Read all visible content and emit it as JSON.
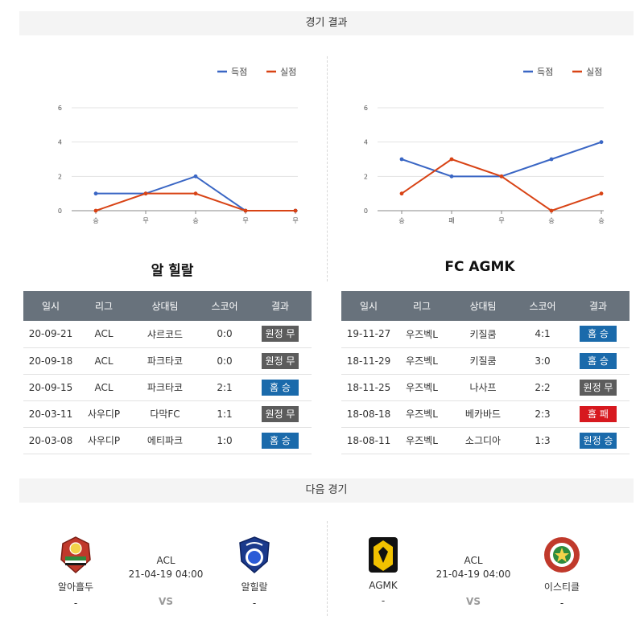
{
  "sections": {
    "results_title": "경기 결과",
    "next_title": "다음 경기"
  },
  "colors": {
    "scored": "#3a66c4",
    "conceded": "#d84315",
    "win": "#1a6aab",
    "draw": "#5c5c5c",
    "lose": "#d7191f",
    "header": "#68727c"
  },
  "chart_data": [
    {
      "type": "line",
      "categories": [
        "승",
        "무",
        "승",
        "무",
        "무"
      ],
      "series": [
        {
          "name": "득점",
          "values": [
            1,
            1,
            2,
            0,
            0
          ]
        },
        {
          "name": "실점",
          "values": [
            0,
            1,
            1,
            0,
            0
          ]
        }
      ],
      "yticks": [
        0,
        2,
        4,
        6
      ],
      "ylim": [
        0,
        6
      ],
      "grid": true,
      "legend": "top-right"
    },
    {
      "type": "line",
      "categories": [
        "승",
        "패",
        "무",
        "승",
        "승"
      ],
      "series": [
        {
          "name": "득점",
          "values": [
            3,
            2,
            2,
            3,
            4
          ]
        },
        {
          "name": "실점",
          "values": [
            1,
            3,
            2,
            0,
            1
          ]
        }
      ],
      "yticks": [
        0,
        2,
        4,
        6
      ],
      "ylim": [
        0,
        6
      ],
      "grid": true,
      "legend": "top-right"
    }
  ],
  "teams": {
    "left": {
      "name": "알 힐랄",
      "headers": [
        "일시",
        "리그",
        "상대팀",
        "스코어",
        "결과"
      ],
      "rows": [
        {
          "date": "20-09-21",
          "league": "ACL",
          "opponent": "샤르코드",
          "score": "0:0",
          "result": "원정 무",
          "type": "draw"
        },
        {
          "date": "20-09-18",
          "league": "ACL",
          "opponent": "파크타코",
          "score": "0:0",
          "result": "원정 무",
          "type": "draw"
        },
        {
          "date": "20-09-15",
          "league": "ACL",
          "opponent": "파크타코",
          "score": "2:1",
          "result": "홈 승",
          "type": "win"
        },
        {
          "date": "20-03-11",
          "league": "사우디P",
          "opponent": "다막FC",
          "score": "1:1",
          "result": "원정 무",
          "type": "draw"
        },
        {
          "date": "20-03-08",
          "league": "사우디P",
          "opponent": "에티파크",
          "score": "1:0",
          "result": "홈 승",
          "type": "win"
        }
      ]
    },
    "right": {
      "name": "FC AGMK",
      "headers": [
        "일시",
        "리그",
        "상대팀",
        "스코어",
        "결과"
      ],
      "rows": [
        {
          "date": "19-11-27",
          "league": "우즈벡L",
          "opponent": "키질쿰",
          "score": "4:1",
          "result": "홈 승",
          "type": "win"
        },
        {
          "date": "18-11-29",
          "league": "우즈벡L",
          "opponent": "키질쿰",
          "score": "3:0",
          "result": "홈 승",
          "type": "win"
        },
        {
          "date": "18-11-25",
          "league": "우즈벡L",
          "opponent": "나사프",
          "score": "2:2",
          "result": "원정 무",
          "type": "draw"
        },
        {
          "date": "18-08-18",
          "league": "우즈벡L",
          "opponent": "베카바드",
          "score": "2:3",
          "result": "홈 패",
          "type": "lose"
        },
        {
          "date": "18-08-11",
          "league": "우즈벡L",
          "opponent": "소그디아",
          "score": "1:3",
          "result": "원정 승",
          "type": "win"
        }
      ]
    }
  },
  "next_matches": [
    {
      "home": "알아흘두",
      "home_sub": "-",
      "away": "알힐랄",
      "away_sub": "-",
      "league": "ACL",
      "datetime": "21-04-19 04:00",
      "vs": "VS"
    },
    {
      "home": "AGMK",
      "home_sub": "-",
      "away": "이스티클",
      "away_sub": "-",
      "league": "ACL",
      "datetime": "21-04-19 04:00",
      "vs": "VS"
    }
  ]
}
